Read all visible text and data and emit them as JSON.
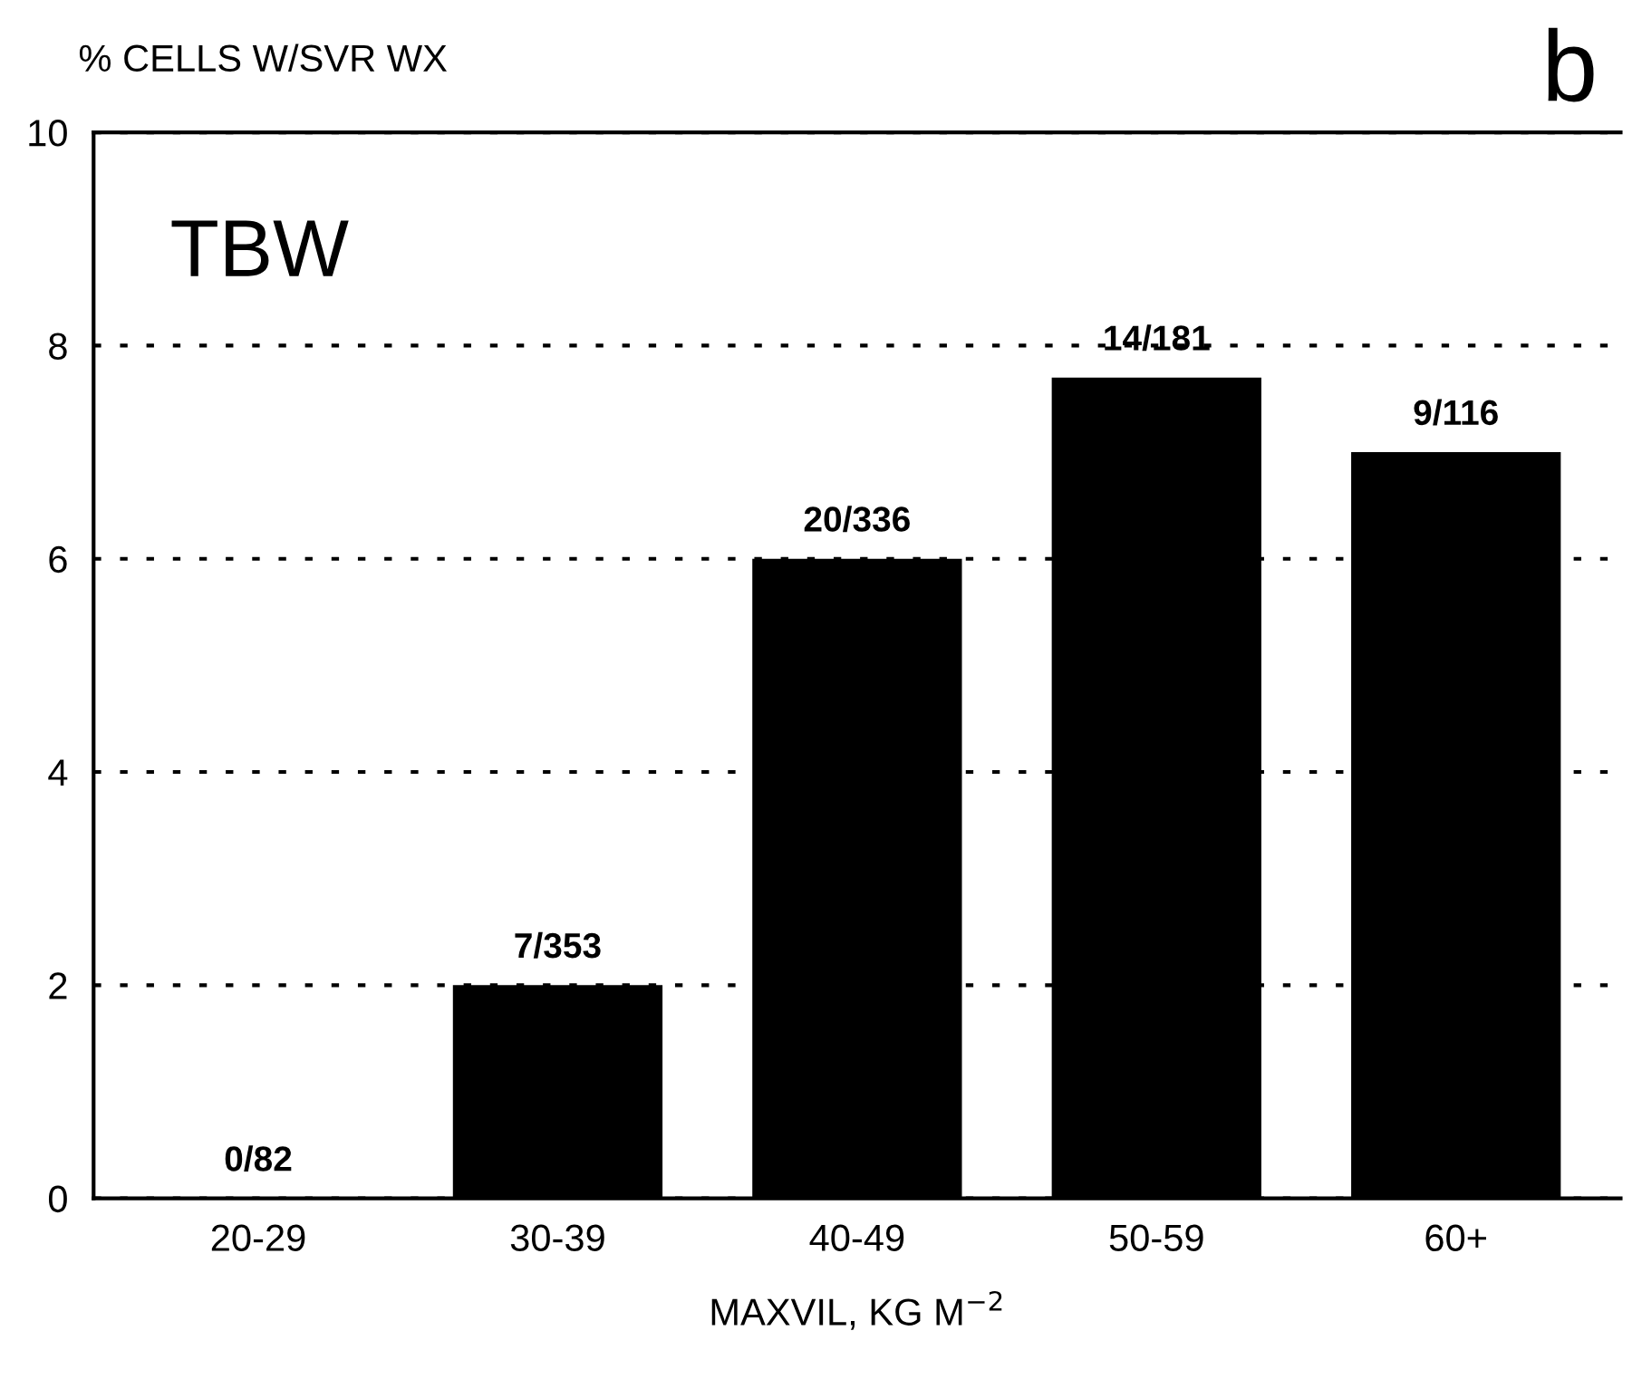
{
  "chart_data": {
    "type": "bar",
    "ylabel": "% CELLS W/SVR WX",
    "xlabel": "MAXVIL, KG M$^{−2}$",
    "categories": [
      "20-29",
      "30-39",
      "40-49",
      "50-59",
      "60+"
    ],
    "values": [
      0,
      2.0,
      6.0,
      7.7,
      7.0
    ],
    "value_labels": [
      "0/82",
      "7/353",
      "20/336",
      "14/181",
      "9/116"
    ],
    "color": "#000000",
    "ylim": [
      0,
      10
    ],
    "yticks": [
      0,
      2,
      4,
      6,
      8,
      10
    ],
    "grid": "y",
    "annotations": [
      "TBW",
      "b"
    ]
  }
}
